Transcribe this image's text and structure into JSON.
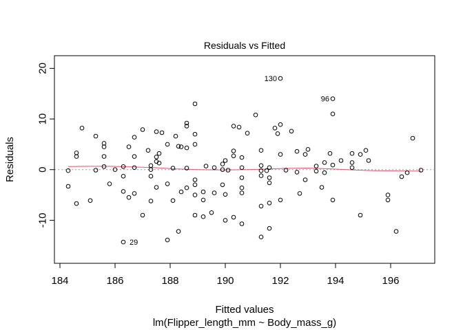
{
  "chart_data": {
    "type": "scatter",
    "title": "Residuals vs Fitted",
    "xlabel": "Fitted values",
    "xlabel2": "lm(Flipper_length_mm ~ Body_mass_g)",
    "ylabel": "Residuals",
    "xlim": [
      183.8,
      197.6
    ],
    "ylim": [
      -18.5,
      22.5
    ],
    "xticks": [
      184,
      186,
      188,
      190,
      192,
      194,
      196
    ],
    "yticks": [
      -10,
      0,
      10,
      20
    ],
    "grid": false,
    "reference_line": {
      "y": 0,
      "color": "#999999",
      "style": "dotted"
    },
    "smoother_color": "#df536b",
    "smoother": [
      [
        184.3,
        0.6
      ],
      [
        185.0,
        0.65
      ],
      [
        185.8,
        0.65
      ],
      [
        186.6,
        0.55
      ],
      [
        187.4,
        0.4
      ],
      [
        188.2,
        0.15
      ],
      [
        189.0,
        0.0
      ],
      [
        189.6,
        -0.05
      ],
      [
        190.2,
        -0.05
      ],
      [
        190.8,
        0.0
      ],
      [
        191.5,
        0.1
      ],
      [
        192.2,
        0.25
      ],
      [
        193.0,
        0.3
      ],
      [
        193.8,
        0.15
      ],
      [
        194.6,
        -0.05
      ],
      [
        195.4,
        -0.2
      ],
      [
        196.2,
        -0.25
      ],
      [
        197.1,
        -0.3
      ]
    ],
    "annotations": [
      {
        "label": "130",
        "x": 192.0,
        "y": 18.0,
        "side": "left"
      },
      {
        "label": "96",
        "x": 193.9,
        "y": 14.0,
        "side": "left"
      },
      {
        "label": "29",
        "x": 186.4,
        "y": -14.3,
        "side": "right"
      }
    ],
    "points": [
      [
        184.3,
        -0.2
      ],
      [
        184.3,
        -3.3
      ],
      [
        184.6,
        -6.7
      ],
      [
        184.6,
        2.6
      ],
      [
        184.6,
        3.3
      ],
      [
        184.8,
        8.2
      ],
      [
        185.1,
        -6.1
      ],
      [
        185.3,
        6.6
      ],
      [
        185.3,
        -0.1
      ],
      [
        185.6,
        0.6
      ],
      [
        185.6,
        2.6
      ],
      [
        185.6,
        4.5
      ],
      [
        185.6,
        5.2
      ],
      [
        185.8,
        -2.8
      ],
      [
        186.0,
        0.0
      ],
      [
        186.3,
        0.6
      ],
      [
        186.3,
        -1.3
      ],
      [
        186.3,
        -4.3
      ],
      [
        186.3,
        -14.3
      ],
      [
        186.5,
        4.5
      ],
      [
        186.5,
        -5.5
      ],
      [
        186.7,
        -4.7
      ],
      [
        186.7,
        0.4
      ],
      [
        186.7,
        2.6
      ],
      [
        186.7,
        6.4
      ],
      [
        187.0,
        7.9
      ],
      [
        187.0,
        -9.0
      ],
      [
        187.2,
        3.8
      ],
      [
        187.3,
        -6.2
      ],
      [
        187.3,
        0.8
      ],
      [
        187.3,
        0.0
      ],
      [
        187.3,
        -1.3
      ],
      [
        187.5,
        7.5
      ],
      [
        187.5,
        2.5
      ],
      [
        187.5,
        1.6
      ],
      [
        187.5,
        -3.5
      ],
      [
        187.6,
        3.2
      ],
      [
        187.6,
        1.3
      ],
      [
        187.7,
        7.3
      ],
      [
        187.9,
        5.0
      ],
      [
        187.9,
        -2.8
      ],
      [
        187.9,
        -13.9
      ],
      [
        188.1,
        -6.1
      ],
      [
        188.1,
        0.3
      ],
      [
        188.2,
        6.6
      ],
      [
        188.3,
        4.6
      ],
      [
        188.3,
        -12.2
      ],
      [
        188.4,
        4.5
      ],
      [
        188.4,
        -4.4
      ],
      [
        188.6,
        -3.6
      ],
      [
        188.6,
        4.3
      ],
      [
        188.6,
        8.6
      ],
      [
        188.6,
        9.2
      ],
      [
        188.6,
        0.3
      ],
      [
        188.9,
        13.0
      ],
      [
        188.9,
        7.0
      ],
      [
        188.9,
        5.0
      ],
      [
        188.9,
        -2.0
      ],
      [
        188.9,
        -3.0
      ],
      [
        188.9,
        -5.0
      ],
      [
        188.9,
        -9.0
      ],
      [
        189.2,
        -6.0
      ],
      [
        189.2,
        -4.4
      ],
      [
        189.2,
        -9.3
      ],
      [
        189.3,
        0.7
      ],
      [
        189.5,
        -8.5
      ],
      [
        189.6,
        0.4
      ],
      [
        189.6,
        -4.6
      ],
      [
        189.9,
        0.0
      ],
      [
        189.9,
        1.1
      ],
      [
        189.9,
        -3.0
      ],
      [
        190.0,
        1.8
      ],
      [
        190.0,
        -10.0
      ],
      [
        190.0,
        -4.9
      ],
      [
        190.1,
        -0.1
      ],
      [
        190.3,
        3.7
      ],
      [
        190.3,
        8.6
      ],
      [
        190.3,
        2.7
      ],
      [
        190.3,
        -9.4
      ],
      [
        190.5,
        8.4
      ],
      [
        190.6,
        0.4
      ],
      [
        190.6,
        -1.6
      ],
      [
        190.6,
        -3.6
      ],
      [
        190.6,
        -4.6
      ],
      [
        190.6,
        2.4
      ],
      [
        190.6,
        -10.7
      ],
      [
        190.8,
        7.2
      ],
      [
        191.1,
        10.8
      ],
      [
        191.3,
        3.8
      ],
      [
        191.3,
        0.8
      ],
      [
        191.3,
        -0.2
      ],
      [
        191.3,
        -1.2
      ],
      [
        191.3,
        -7.2
      ],
      [
        191.3,
        -13.3
      ],
      [
        191.5,
        -0.2
      ],
      [
        191.6,
        0.4
      ],
      [
        191.6,
        -2.6
      ],
      [
        191.6,
        -1.6
      ],
      [
        191.6,
        -6.6
      ],
      [
        191.6,
        -11.6
      ],
      [
        191.8,
        8.2
      ],
      [
        191.9,
        7.1
      ],
      [
        192.0,
        8.9
      ],
      [
        192.0,
        3.0
      ],
      [
        192.0,
        -6.0
      ],
      [
        192.0,
        18.0
      ],
      [
        192.2,
        -0.1
      ],
      [
        192.4,
        7.6
      ],
      [
        192.6,
        3.6
      ],
      [
        192.6,
        -0.5
      ],
      [
        192.7,
        -4.7
      ],
      [
        192.9,
        3.0
      ],
      [
        192.9,
        -2.0
      ],
      [
        193.0,
        4.0
      ],
      [
        193.3,
        0.7
      ],
      [
        193.3,
        -0.3
      ],
      [
        193.5,
        -3.5
      ],
      [
        193.6,
        1.4
      ],
      [
        193.6,
        -0.6
      ],
      [
        193.8,
        3.2
      ],
      [
        193.9,
        14.0
      ],
      [
        193.9,
        11.0
      ],
      [
        193.9,
        0.9
      ],
      [
        193.9,
        -6.0
      ],
      [
        194.2,
        1.8
      ],
      [
        194.6,
        3.2
      ],
      [
        194.6,
        0.4
      ],
      [
        194.6,
        1.4
      ],
      [
        194.9,
        -9.0
      ],
      [
        194.9,
        3.0
      ],
      [
        195.1,
        3.8
      ],
      [
        195.2,
        1.8
      ],
      [
        195.9,
        -5.0
      ],
      [
        195.9,
        -6.0
      ],
      [
        196.2,
        -12.2
      ],
      [
        196.4,
        -1.4
      ],
      [
        196.6,
        -0.6
      ],
      [
        196.8,
        6.2
      ],
      [
        197.1,
        -0.1
      ]
    ]
  }
}
